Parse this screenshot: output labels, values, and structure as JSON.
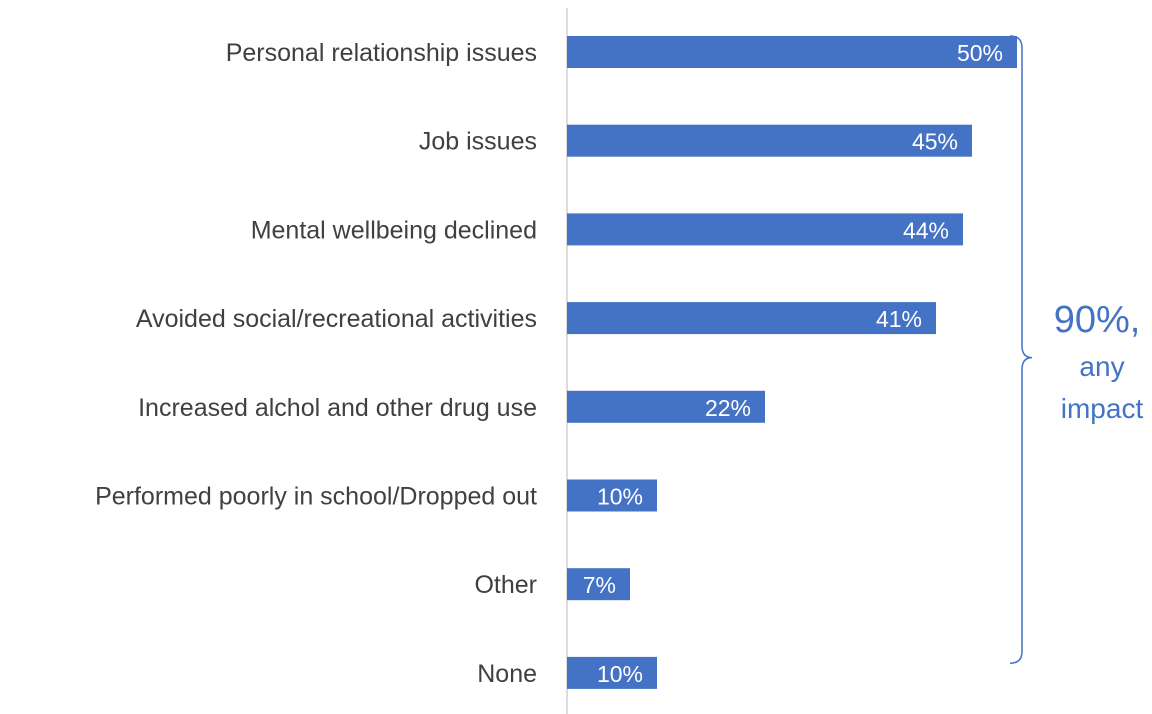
{
  "chart_data": {
    "type": "bar",
    "orientation": "horizontal",
    "categories": [
      "Personal relationship issues",
      "Job issues",
      "Mental wellbeing declined",
      "Avoided social/recreational activities",
      "Increased alchol and other drug use",
      "Performed poorly in school/Dropped out",
      "Other",
      "None"
    ],
    "values": [
      50,
      45,
      44,
      41,
      22,
      10,
      7,
      10
    ],
    "value_labels": [
      "50%",
      "45%",
      "44%",
      "41%",
      "22%",
      "10%",
      "7%",
      "10%"
    ],
    "xlim": [
      0,
      50
    ],
    "grid": false,
    "legend": "none",
    "bar_color": "#4472c4",
    "annotation": {
      "line1": "90%,",
      "line2": "any",
      "line3": "impact",
      "color": "#4472c4",
      "spans_categories": [
        0,
        6
      ]
    }
  }
}
